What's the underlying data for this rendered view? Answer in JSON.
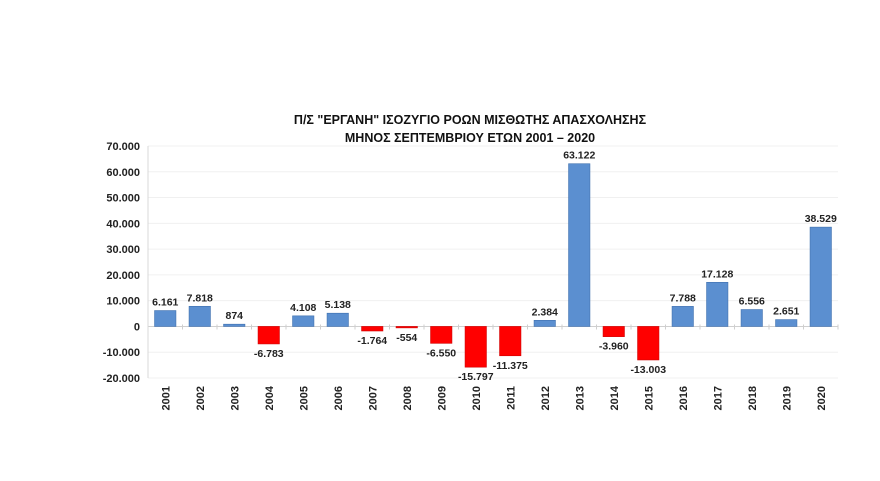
{
  "chart_data": {
    "type": "bar",
    "title": "Π/Σ \"ΕΡΓΑΝΗ\" ΙΣΟΖΥΓΙΟ ΡΟΩΝ ΜΙΣΘΩΤΗΣ ΑΠΑΣΧΟΛΗΣΗΣ",
    "subtitle": "ΜΗΝΟΣ ΣΕΠΤΕΜΒΡΙΟΥ ΕΤΩΝ 2001 – 2020",
    "xlabel": "",
    "ylabel": "",
    "categories": [
      "2001",
      "2002",
      "2003",
      "2004",
      "2005",
      "2006",
      "2007",
      "2008",
      "2009",
      "2010",
      "2011",
      "2012",
      "2013",
      "2014",
      "2015",
      "2016",
      "2017",
      "2018",
      "2019",
      "2020"
    ],
    "values": [
      6161,
      7818,
      874,
      -6783,
      4108,
      5138,
      -1764,
      -554,
      -6550,
      -15797,
      -11375,
      2384,
      63122,
      -3960,
      -13003,
      7788,
      17128,
      6556,
      2651,
      38529
    ],
    "data_labels": [
      "6.161",
      "7.818",
      "874",
      "-6.783",
      "4.108",
      "5.138",
      "-1.764",
      "-554",
      "-6.550",
      "-15.797",
      "-11.375",
      "2.384",
      "63.122",
      "-3.960",
      "-13.003",
      "7.788",
      "17.128",
      "6.556",
      "2.651",
      "38.529"
    ],
    "ylim": [
      -20000,
      70000
    ],
    "yticks": [
      70000,
      60000,
      50000,
      40000,
      30000,
      20000,
      10000,
      0,
      -10000,
      -20000
    ],
    "ytick_labels": [
      "70.000",
      "60.000",
      "50.000",
      "40.000",
      "30.000",
      "20.000",
      "10.000",
      "0",
      "-10.000",
      "-20.000"
    ],
    "grid": true,
    "legend": "none",
    "colors": {
      "positive": "#5b8fd0",
      "negative": "#ff0000"
    }
  }
}
